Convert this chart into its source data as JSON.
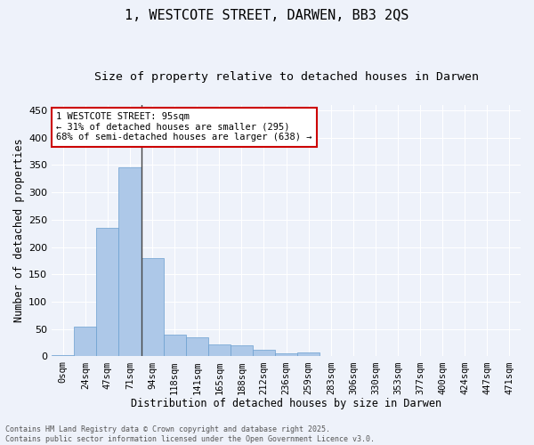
{
  "title": "1, WESTCOTE STREET, DARWEN, BB3 2QS",
  "subtitle": "Size of property relative to detached houses in Darwen",
  "xlabel": "Distribution of detached houses by size in Darwen",
  "ylabel": "Number of detached properties",
  "bar_labels": [
    "0sqm",
    "24sqm",
    "47sqm",
    "71sqm",
    "94sqm",
    "118sqm",
    "141sqm",
    "165sqm",
    "188sqm",
    "212sqm",
    "236sqm",
    "259sqm",
    "283sqm",
    "306sqm",
    "330sqm",
    "353sqm",
    "377sqm",
    "400sqm",
    "424sqm",
    "447sqm",
    "471sqm"
  ],
  "bar_values": [
    2,
    55,
    235,
    345,
    180,
    40,
    35,
    22,
    21,
    12,
    5,
    8,
    0,
    0,
    0,
    0,
    0,
    0,
    0,
    0,
    0
  ],
  "bar_color": "#adc8e8",
  "bar_edge_color": "#6a9fd0",
  "vertical_line_index": 4,
  "vertical_line_color": "#444444",
  "annotation_text": "1 WESTCOTE STREET: 95sqm\n← 31% of detached houses are smaller (295)\n68% of semi-detached houses are larger (638) →",
  "annotation_box_color": "#ffffff",
  "annotation_box_edge_color": "#cc0000",
  "ylim": [
    0,
    460
  ],
  "yticks": [
    0,
    50,
    100,
    150,
    200,
    250,
    300,
    350,
    400,
    450
  ],
  "background_color": "#eef2fa",
  "grid_color": "#ffffff",
  "footer_text": "Contains HM Land Registry data © Crown copyright and database right 2025.\nContains public sector information licensed under the Open Government Licence v3.0.",
  "title_fontsize": 11,
  "subtitle_fontsize": 9.5,
  "xlabel_fontsize": 8.5,
  "ylabel_fontsize": 8.5,
  "annotation_fontsize": 7.5,
  "footer_fontsize": 6,
  "tick_fontsize": 7.5,
  "ytick_fontsize": 8
}
